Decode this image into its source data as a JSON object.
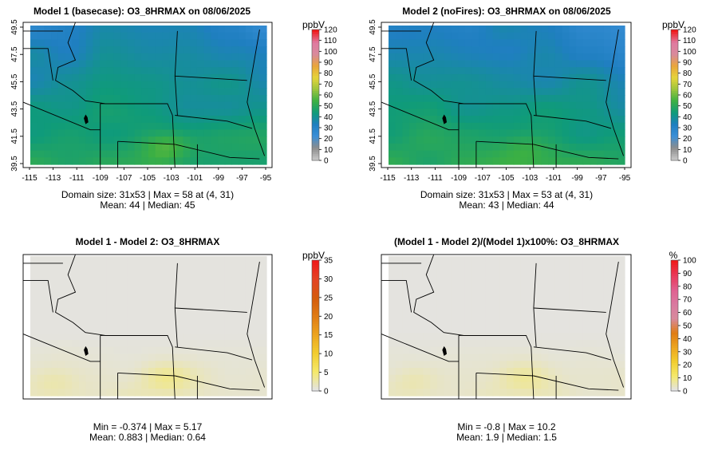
{
  "chart_data": [
    {
      "type": "heatmap",
      "title": "Model 1 (basecase): O3_8HRMAX on 08/06/2025",
      "x_ticks": [
        "-115",
        "-113",
        "-111",
        "-109",
        "-107",
        "-105",
        "-103",
        "-101",
        "-99",
        "-97",
        "-95"
      ],
      "y_ticks": [
        "39.5",
        "41.5",
        "43.5",
        "45.5",
        "47.5",
        "49.5"
      ],
      "xlim": [
        -115,
        -95
      ],
      "ylim": [
        39.5,
        49.5
      ],
      "colorbar": {
        "unit": "ppbV",
        "ticks": [
          "0",
          "10",
          "20",
          "30",
          "40",
          "50",
          "60",
          "70",
          "80",
          "90",
          "100",
          "110",
          "120"
        ],
        "range": [
          0,
          120
        ]
      },
      "stats": [
        "Domain size: 31x53 | Max = 58 at (4, 31)",
        "Mean: 44 |  Median: 45"
      ],
      "field": {
        "mean": 44,
        "median": 45,
        "max": 58,
        "min": 30,
        "high_region": "south-central (Colorado)",
        "low_region": "north-east (North Dakota / Minnesota border)"
      }
    },
    {
      "type": "heatmap",
      "title": "Model 2 (noFires): O3_8HRMAX on 08/06/2025",
      "x_ticks": [
        "-115",
        "-113",
        "-111",
        "-109",
        "-107",
        "-105",
        "-103",
        "-101",
        "-99",
        "-97",
        "-95"
      ],
      "y_ticks": [
        "39.5",
        "41.5",
        "43.5",
        "45.5",
        "47.5",
        "49.5"
      ],
      "xlim": [
        -115,
        -95
      ],
      "ylim": [
        39.5,
        49.5
      ],
      "colorbar": {
        "unit": "ppbV",
        "ticks": [
          "0",
          "10",
          "20",
          "30",
          "40",
          "50",
          "60",
          "70",
          "80",
          "90",
          "100",
          "110",
          "120"
        ],
        "range": [
          0,
          120
        ]
      },
      "stats": [
        "Domain size: 31x53 | Max = 53 at (4, 31)",
        "Mean: 43 |  Median: 44"
      ],
      "field": {
        "mean": 43,
        "median": 44,
        "max": 53,
        "min": 30,
        "high_region": "south-central (Colorado)",
        "low_region": "north-east (North Dakota / Minnesota border)"
      }
    },
    {
      "type": "heatmap",
      "title": "Model 1 - Model 2: O3_8HRMAX",
      "colorbar": {
        "unit": "ppbV",
        "ticks": [
          "0",
          "5",
          "10",
          "15",
          "20",
          "25",
          "30",
          "35"
        ],
        "range": [
          0,
          35
        ]
      },
      "stats": [
        "Min = -0.374 | Max = 5.17",
        "Mean: 0.883 |  Median: 0.64"
      ],
      "field": {
        "mean": 0.883,
        "median": 0.64,
        "max": 5.17,
        "min": -0.374
      }
    },
    {
      "type": "heatmap",
      "title": "(Model 1 - Model 2)/(Model 1)x100%: O3_8HRMAX",
      "colorbar": {
        "unit": "%",
        "ticks": [
          "0",
          "10",
          "20",
          "30",
          "40",
          "50",
          "60",
          "70",
          "80",
          "90",
          "100"
        ],
        "range": [
          0,
          100
        ]
      },
      "stats": [
        "Min = -0.8 | Max = 10.2",
        "Mean: 1.9 |  Median: 1.5"
      ],
      "field": {
        "mean": 1.9,
        "median": 1.5,
        "max": 10.2,
        "min": -0.8
      }
    }
  ],
  "colors": {
    "conc_palette": [
      "#c8c8c8",
      "#8c8c8c",
      "#3a8fd8",
      "#1f7fc0",
      "#0f9b7a",
      "#3cb043",
      "#9cc53c",
      "#e6d43a",
      "#e9a53a",
      "#d88a9c",
      "#e07aa0",
      "#f01a1a"
    ],
    "diff_palette": [
      "#e3e3e3",
      "#f5e96a",
      "#f2cd2f",
      "#eda51f",
      "#e07c14",
      "#d45c0c",
      "#e34424",
      "#f01a1a"
    ],
    "pct_palette": [
      "#e3e3e3",
      "#f5e96a",
      "#f2cd2f",
      "#eda51f",
      "#e07c14",
      "#d88a9c",
      "#d97aa0",
      "#e06090",
      "#ea3a5a",
      "#f01a1a"
    ]
  }
}
